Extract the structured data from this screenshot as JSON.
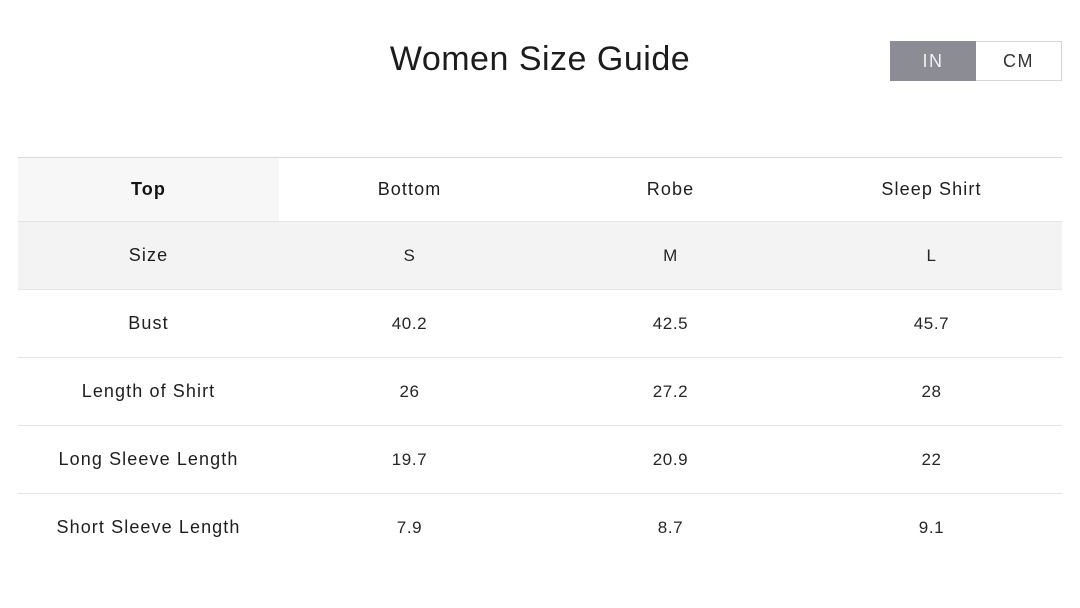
{
  "header": {
    "title": "Women Size Guide",
    "unit_toggle": {
      "in_label": "IN",
      "cm_label": "CM",
      "selected": "IN"
    }
  },
  "size_table": {
    "category_tabs": [
      {
        "label": "Top",
        "selected": true
      },
      {
        "label": "Bottom",
        "selected": false
      },
      {
        "label": "Robe",
        "selected": false
      },
      {
        "label": "Sleep Shirt",
        "selected": false
      }
    ],
    "rows": [
      {
        "label": "Size",
        "values": [
          "S",
          "M",
          "L"
        ]
      },
      {
        "label": "Bust",
        "values": [
          "40.2",
          "42.5",
          "45.7"
        ]
      },
      {
        "label": "Length of Shirt",
        "values": [
          "26",
          "27.2",
          "28"
        ]
      },
      {
        "label": "Long Sleeve Length",
        "values": [
          "19.7",
          "20.9",
          "22"
        ]
      },
      {
        "label": "Short Sleeve Length",
        "values": [
          "7.9",
          "8.7",
          "9.1"
        ]
      }
    ]
  },
  "colors": {
    "toggle_selected_bg": "#8c8c94",
    "toggle_selected_text": "#f2f2f2",
    "toggle_unselected_border": "#d6d6d6",
    "selected_tab_bg": "#f7f7f7",
    "size_row_bg": "#f3f3f4",
    "row_border": "#e5e5e5",
    "text": "#1e1e1e"
  }
}
